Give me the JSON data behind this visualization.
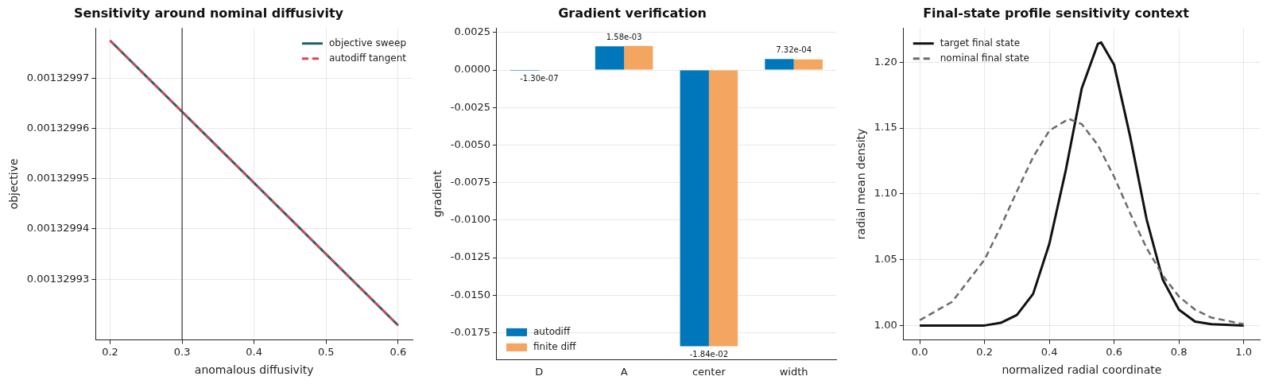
{
  "chart_data": [
    {
      "type": "line",
      "title": "Sensitivity around nominal diffusivity",
      "xlabel": "anomalous diffusivity",
      "ylabel": "objective",
      "x": [
        0.2,
        0.6
      ],
      "series": [
        {
          "name": "objective sweep",
          "color": "#1f6266",
          "values": [
            0.0013299775,
            0.0013299208
          ]
        },
        {
          "name": "autodiff tangent",
          "color": "#e0404f",
          "line_style": "dashed",
          "values": [
            0.0013299775,
            0.0013299208
          ]
        }
      ],
      "xlim": [
        0.18,
        0.62
      ],
      "xticks": [
        0.2,
        0.3,
        0.4,
        0.5,
        0.6
      ],
      "ylim": [
        0.0013299179,
        0.00132998
      ],
      "yticks": [
        0.00132993,
        0.00132994,
        0.00132995,
        0.00132996,
        0.00132997
      ],
      "ref_lines": [
        {
          "axis": "x",
          "value": 0.3,
          "color": "#333333"
        }
      ],
      "grid": true,
      "legend": "top right"
    },
    {
      "type": "bar",
      "title": "Gradient verification",
      "ylabel": "gradient",
      "categories": [
        "D",
        "A",
        "center",
        "width"
      ],
      "series": [
        {
          "name": "autodiff",
          "color": "#0077bb",
          "values": [
            -1.3e-07,
            0.00158,
            -0.0184,
            0.000732
          ],
          "value_labels": [
            "-1.30e-07",
            "1.58e-03",
            "-1.84e-02",
            "7.32e-04"
          ]
        },
        {
          "name": "finite diff",
          "color": "#f4a560",
          "values": [
            0,
            0.0016,
            -0.0184,
            0.0007
          ]
        }
      ],
      "ylim": [
        -0.0193,
        0.0028
      ],
      "yticks": [
        {
          "value": -0.0175,
          "label": "-0.0175"
        },
        {
          "value": -0.015,
          "label": "-0.0150"
        },
        {
          "value": -0.0125,
          "label": "-0.0125"
        },
        {
          "value": -0.01,
          "label": "-0.0100"
        },
        {
          "value": -0.0075,
          "label": "-0.0075"
        },
        {
          "value": -0.005,
          "label": "-0.0050"
        },
        {
          "value": -0.0025,
          "label": "-0.0025"
        },
        {
          "value": 0,
          "label": "0.0000"
        },
        {
          "value": 0.0025,
          "label": "0.0025"
        }
      ],
      "grid": "y",
      "legend": "bottom left"
    },
    {
      "type": "line",
      "title": "Final-state profile sensitivity context",
      "xlabel": "normalized radial coordinate",
      "ylabel": "radial mean density",
      "series": [
        {
          "name": "target final state",
          "color": "#111111",
          "x": [
            0,
            0.1,
            0.2,
            0.25,
            0.3,
            0.35,
            0.4,
            0.45,
            0.5,
            0.55,
            0.56,
            0.6,
            0.65,
            0.7,
            0.75,
            0.8,
            0.85,
            0.9,
            1.0
          ],
          "values": [
            1.0,
            1.0,
            1.0,
            1.002,
            1.008,
            1.024,
            1.062,
            1.117,
            1.18,
            1.214,
            1.215,
            1.198,
            1.143,
            1.081,
            1.035,
            1.012,
            1.003,
            1.001,
            1.0
          ]
        },
        {
          "name": "nominal final state",
          "color": "#6b6b6b",
          "line_style": "dashed",
          "x": [
            0,
            0.1,
            0.2,
            0.25,
            0.3,
            0.35,
            0.4,
            0.46,
            0.5,
            0.55,
            0.6,
            0.65,
            0.7,
            0.75,
            0.8,
            0.85,
            0.9,
            1.0
          ],
          "values": [
            1.004,
            1.018,
            1.05,
            1.075,
            1.102,
            1.128,
            1.148,
            1.157,
            1.153,
            1.137,
            1.113,
            1.085,
            1.059,
            1.038,
            1.022,
            1.012,
            1.006,
            1.001
          ]
        }
      ],
      "xlim": [
        -0.05,
        1.05
      ],
      "xticks": [
        {
          "value": 0,
          "label": "0.0"
        },
        {
          "value": 0.2,
          "label": "0.2"
        },
        {
          "value": 0.4,
          "label": "0.4"
        },
        {
          "value": 0.6,
          "label": "0.6"
        },
        {
          "value": 0.8,
          "label": "0.8"
        },
        {
          "value": 1,
          "label": "1.0"
        }
      ],
      "ylim": [
        0.989,
        1.226
      ],
      "yticks": [
        {
          "value": 1,
          "label": "1.00"
        },
        {
          "value": 1.05,
          "label": "1.05"
        },
        {
          "value": 1.1,
          "label": "1.10"
        },
        {
          "value": 1.15,
          "label": "1.15"
        },
        {
          "value": 1.2,
          "label": "1.20"
        }
      ],
      "grid": true,
      "legend": "top left"
    }
  ]
}
